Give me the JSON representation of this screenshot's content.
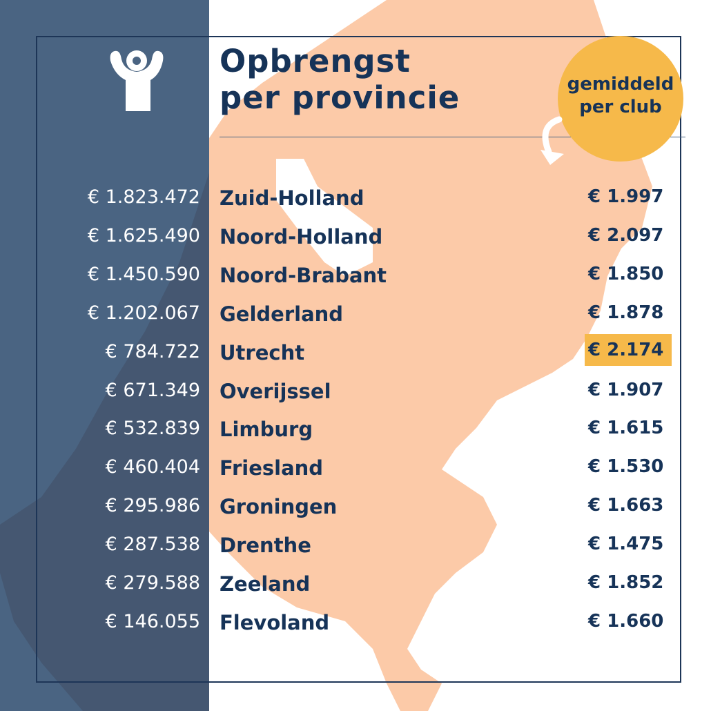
{
  "title_line1": "Opbrengst",
  "title_line2": "per provincie",
  "badge_line1": "gemiddeld",
  "badge_line2": "per club",
  "colors": {
    "navy": "#163358",
    "panel": "#4a6482",
    "map": "#fccaa8",
    "highlight": "#f6b94a"
  },
  "icons": [
    "person-arms-raised-logo-icon",
    "curved-arrow-icon"
  ],
  "rows": [
    {
      "total": "€ 1.823.472",
      "province": "Zuid-Holland",
      "average": "€ 1.997"
    },
    {
      "total": "€ 1.625.490",
      "province": "Noord-Holland",
      "average": "€ 2.097"
    },
    {
      "total": "€ 1.450.590",
      "province": "Noord-Brabant",
      "average": "€ 1.850"
    },
    {
      "total": "€ 1.202.067",
      "province": "Gelderland",
      "average": "€ 1.878"
    },
    {
      "total": "€ 784.722",
      "province": "Utrecht",
      "average": "€ 2.174",
      "highlighted": true
    },
    {
      "total": "€ 671.349",
      "province": "Overijssel",
      "average": "€ 1.907"
    },
    {
      "total": "€ 532.839",
      "province": "Limburg",
      "average": "€ 1.615"
    },
    {
      "total": "€ 460.404",
      "province": "Friesland",
      "average": "€ 1.530"
    },
    {
      "total": "€ 295.986",
      "province": "Groningen",
      "average": "€ 1.663"
    },
    {
      "total": "€ 287.538",
      "province": "Drenthe",
      "average": "€ 1.475"
    },
    {
      "total": "€ 279.588",
      "province": "Zeeland",
      "average": "€ 1.852"
    },
    {
      "total": "€ 146.055",
      "province": "Flevoland",
      "average": "€ 1.660"
    }
  ]
}
